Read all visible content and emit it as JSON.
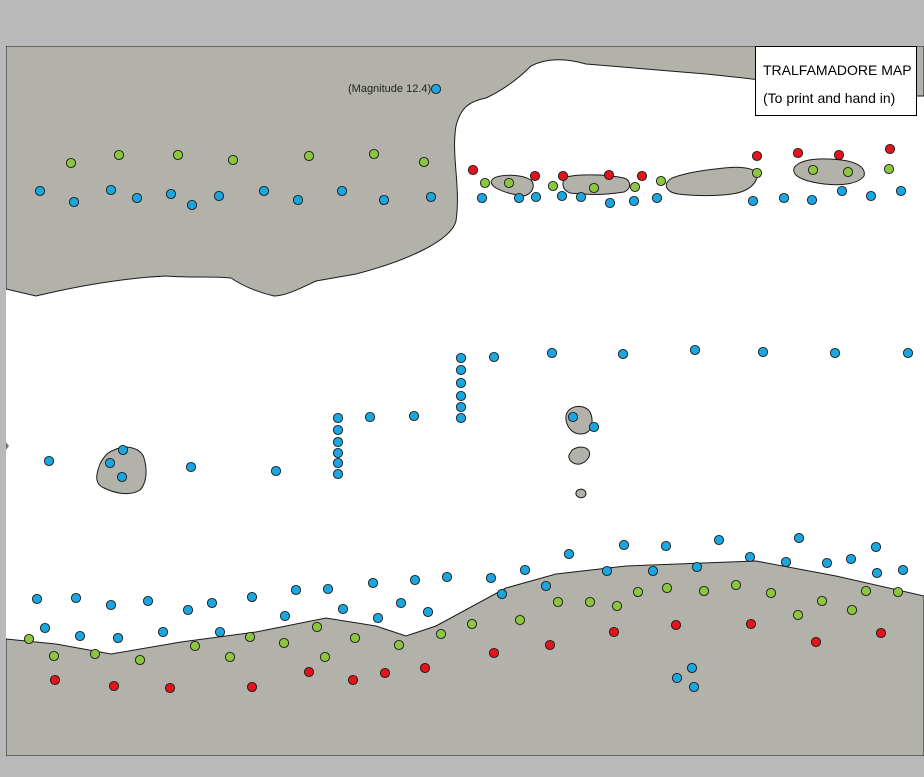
{
  "map": {
    "title": "TRALFAMADORE MAP",
    "subtitle": "(To print and hand in)",
    "magnitude_label": "(Magnitude 12.4)",
    "colors": {
      "background": "#b9b9b9",
      "sea": "#ffffff",
      "land": "#b3b2aa",
      "outline": "#1a1a1a",
      "blue": "#1aa6e0",
      "green": "#8cc63f",
      "red": "#e3141b"
    },
    "marker_colors_legend": [
      "blue",
      "green",
      "red"
    ]
  }
}
